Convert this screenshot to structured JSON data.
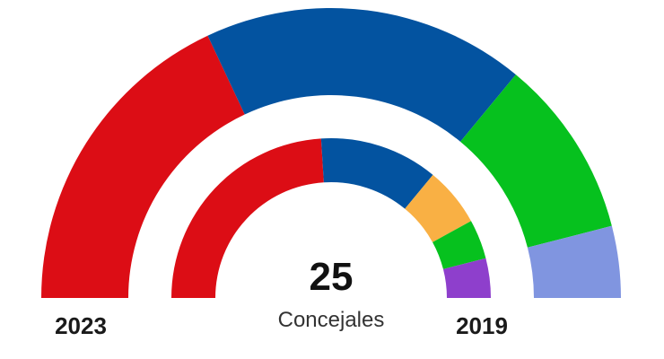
{
  "chart_data": {
    "type": "pie",
    "variant": "parliament-semicircle",
    "total_seats": "25",
    "total_label": "Concejales",
    "rings": [
      {
        "year": "2023",
        "position": "outer",
        "segments": [
          {
            "seats": 9,
            "color": "#DC0D15"
          },
          {
            "seats": 9,
            "color": "#0353A0"
          },
          {
            "seats": 5,
            "color": "#06C11E"
          },
          {
            "seats": 2,
            "color": "#8095E0"
          }
        ]
      },
      {
        "year": "2019",
        "position": "inner",
        "segments": [
          {
            "seats": 12,
            "color": "#DC0D15"
          },
          {
            "seats": 6,
            "color": "#0353A0"
          },
          {
            "seats": 3,
            "color": "#F9B044"
          },
          {
            "seats": 2,
            "color": "#06C11E"
          },
          {
            "seats": 2,
            "color": "#8E3FCC"
          }
        ]
      }
    ]
  }
}
